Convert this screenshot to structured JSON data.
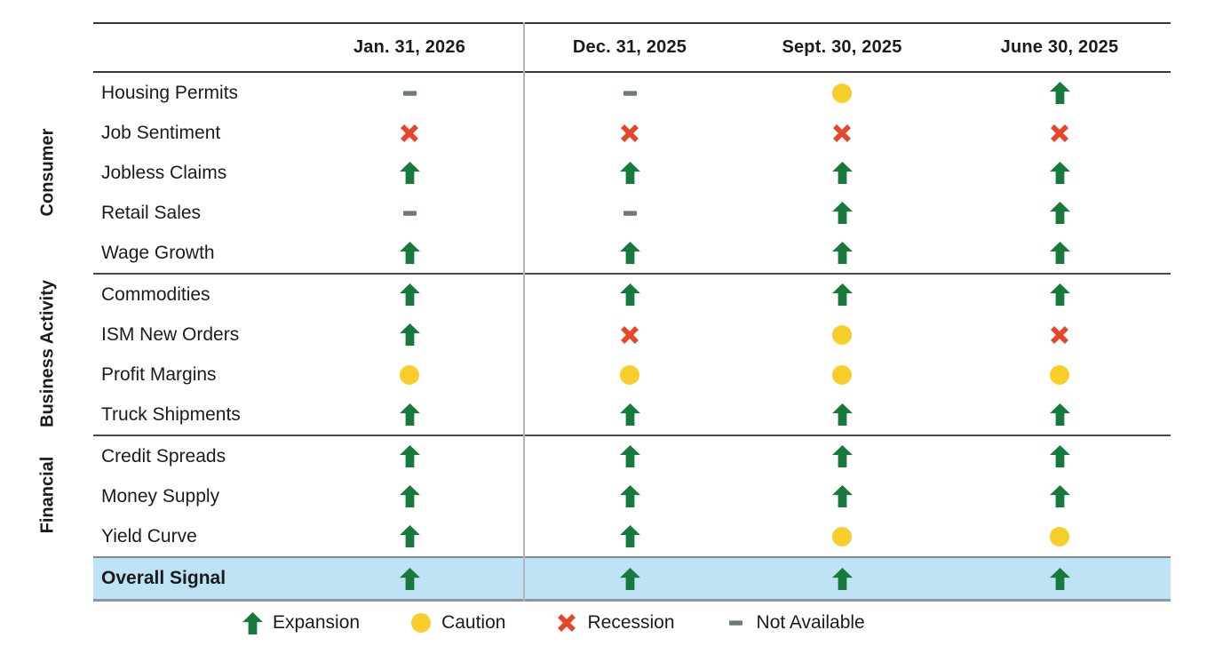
{
  "chart_data": {
    "type": "table",
    "title": "",
    "columns": [
      "Jan. 31, 2026",
      "Dec. 31, 2025",
      "Sept. 30, 2025",
      "June 30, 2025"
    ],
    "groups": [
      {
        "label": "Consumer",
        "rows": [
          {
            "label": "Housing Permits",
            "values": [
              "na",
              "na",
              "caution",
              "expansion"
            ]
          },
          {
            "label": "Job Sentiment",
            "values": [
              "recession",
              "recession",
              "recession",
              "recession"
            ]
          },
          {
            "label": "Jobless Claims",
            "values": [
              "expansion",
              "expansion",
              "expansion",
              "expansion"
            ]
          },
          {
            "label": "Retail Sales",
            "values": [
              "na",
              "na",
              "expansion",
              "expansion"
            ]
          },
          {
            "label": "Wage Growth",
            "values": [
              "expansion",
              "expansion",
              "expansion",
              "expansion"
            ]
          }
        ]
      },
      {
        "label": "Business Activity",
        "rows": [
          {
            "label": "Commodities",
            "values": [
              "expansion",
              "expansion",
              "expansion",
              "expansion"
            ]
          },
          {
            "label": "ISM New Orders",
            "values": [
              "expansion",
              "recession",
              "caution",
              "recession"
            ]
          },
          {
            "label": "Profit Margins",
            "values": [
              "caution",
              "caution",
              "caution",
              "caution"
            ]
          },
          {
            "label": "Truck Shipments",
            "values": [
              "expansion",
              "expansion",
              "expansion",
              "expansion"
            ]
          }
        ]
      },
      {
        "label": "Financial",
        "rows": [
          {
            "label": "Credit Spreads",
            "values": [
              "expansion",
              "expansion",
              "expansion",
              "expansion"
            ]
          },
          {
            "label": "Money Supply",
            "values": [
              "expansion",
              "expansion",
              "expansion",
              "expansion"
            ]
          },
          {
            "label": "Yield Curve",
            "values": [
              "expansion",
              "expansion",
              "caution",
              "caution"
            ]
          }
        ]
      }
    ],
    "overall": {
      "label": "Overall Signal",
      "values": [
        "expansion",
        "expansion",
        "expansion",
        "expansion"
      ]
    },
    "legend": [
      {
        "symbol": "expansion",
        "label": "Expansion"
      },
      {
        "symbol": "caution",
        "label": "Caution"
      },
      {
        "symbol": "recession",
        "label": "Recession"
      },
      {
        "symbol": "na",
        "label": "Not Available"
      }
    ],
    "colors": {
      "expansion": "#17793C",
      "caution": "#F9CE2B",
      "recession": "#E5472B",
      "not_available": "#6C7A7C",
      "overall_row_bg": "#BEE3F5"
    }
  }
}
